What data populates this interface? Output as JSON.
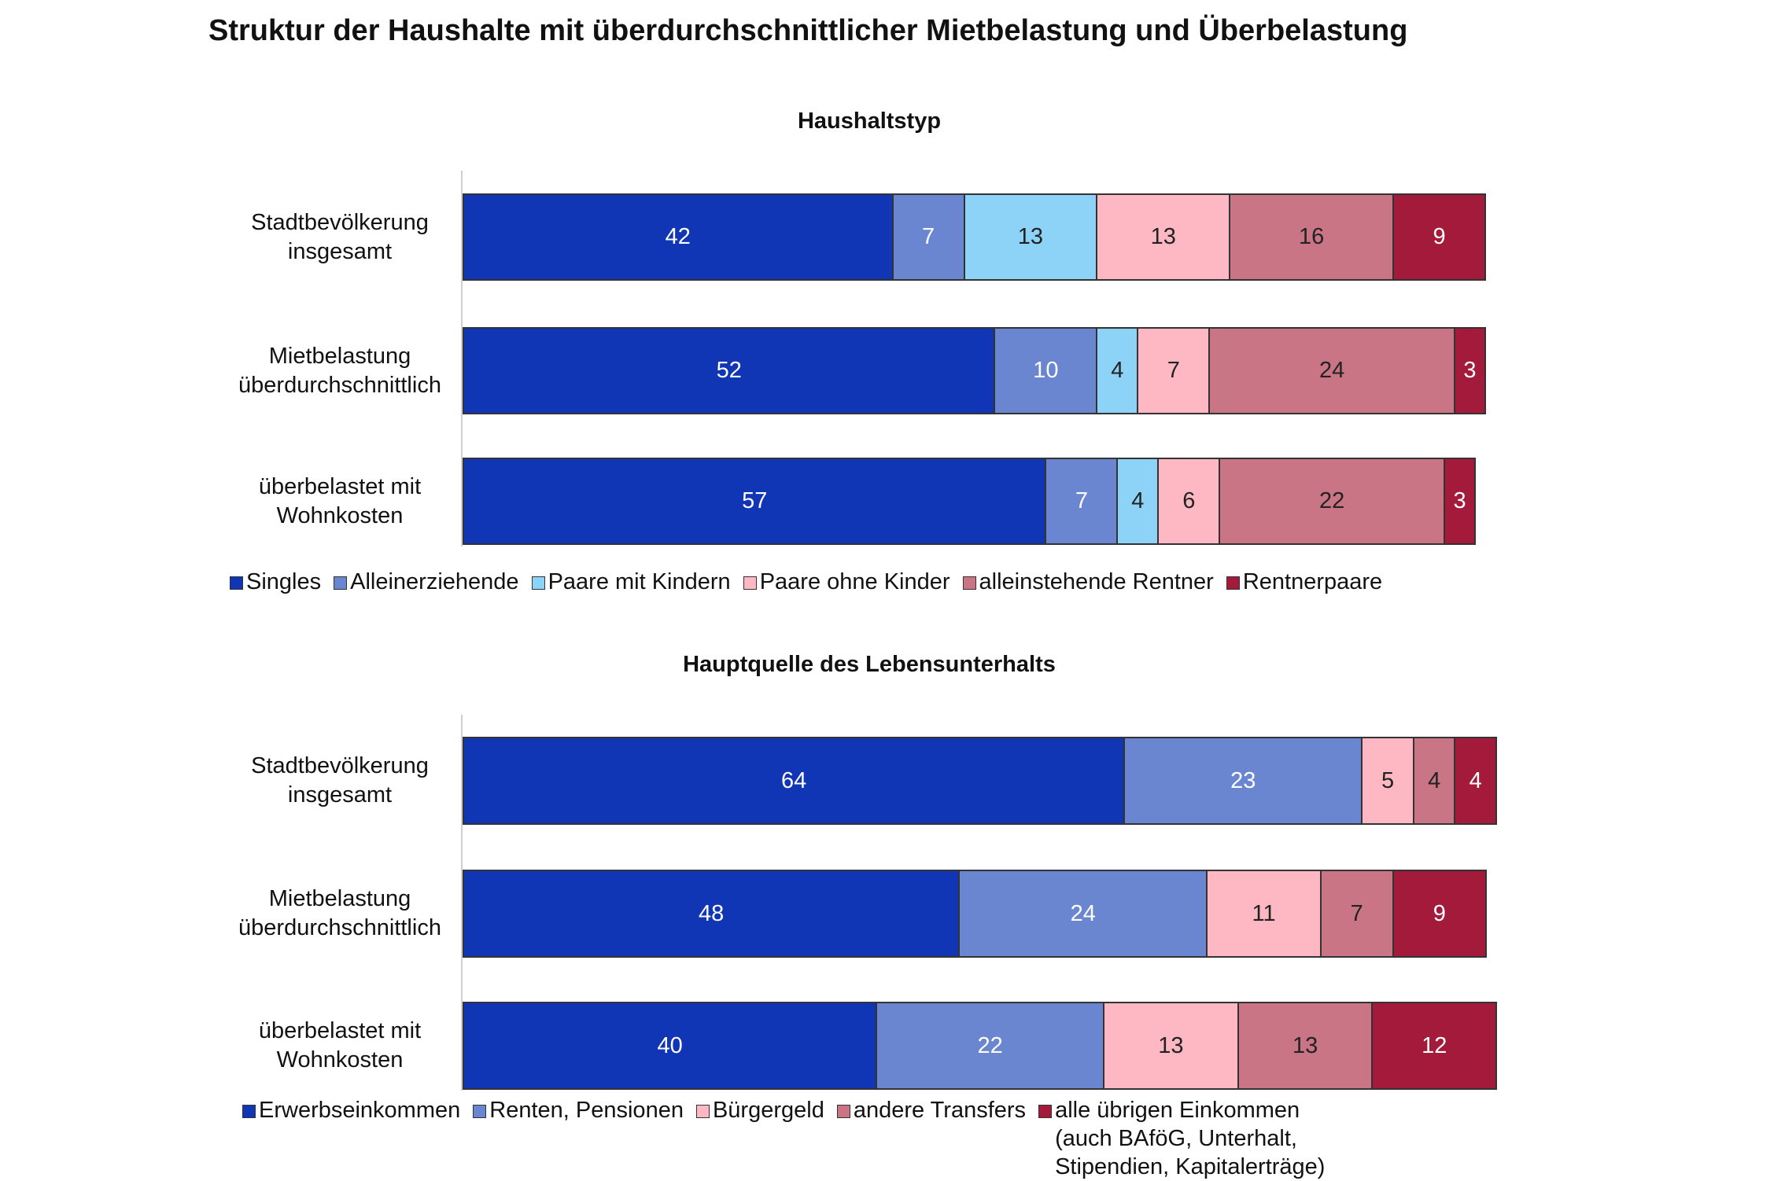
{
  "title": "Struktur der Haushalte mit überdurchschnittlicher Mietbelastung und Überbelastung",
  "chart_data": [
    {
      "type": "stacked_barh",
      "title": "Haushaltstyp",
      "categories": [
        "Stadtbevölkerung insgesamt",
        "Mietbelastung überdurchschnittlich",
        "überbelastet mit Wohnkosten"
      ],
      "xlim": [
        0,
        100
      ],
      "series": [
        {
          "name": "Singles",
          "color": "#1035b5",
          "values": [
            42,
            52,
            57
          ]
        },
        {
          "name": "Alleinerziehende",
          "color": "#6a86d0",
          "values": [
            7,
            10,
            7
          ]
        },
        {
          "name": "Paare mit Kindern",
          "color": "#8dd3f7",
          "values": [
            13,
            4,
            4
          ]
        },
        {
          "name": "Paare ohne Kinder",
          "color": "#fdb8c4",
          "values": [
            13,
            7,
            6
          ]
        },
        {
          "name": "alleinstehende Rentner",
          "color": "#c97585",
          "values": [
            16,
            24,
            22
          ]
        },
        {
          "name": "Rentnerpaare",
          "color": "#a31a3a",
          "values": [
            9,
            3,
            3
          ]
        }
      ]
    },
    {
      "type": "stacked_barh",
      "title": "Hauptquelle des Lebensunterhalts",
      "categories": [
        "Stadtbevölkerung insgesamt",
        "Mietbelastung überdurchschnittlich",
        "überbelastet mit Wohnkosten"
      ],
      "xlim": [
        0,
        100
      ],
      "series": [
        {
          "name": "Erwerbseinkommen",
          "color": "#1035b5",
          "values": [
            64,
            48,
            40
          ]
        },
        {
          "name": "Renten, Pensionen",
          "color": "#6a86d0",
          "values": [
            23,
            24,
            22
          ]
        },
        {
          "name": "Bürgergeld",
          "color": "#fdb8c4",
          "values": [
            5,
            11,
            13
          ]
        },
        {
          "name": "andere Transfers",
          "color": "#c97585",
          "values": [
            4,
            7,
            13
          ]
        },
        {
          "name": "alle übrigen Einkommen (auch BAföG, Unterhalt, Stipendien, Kapitalerträge)",
          "color": "#a31a3a",
          "values": [
            4,
            9,
            12
          ]
        }
      ]
    }
  ]
}
